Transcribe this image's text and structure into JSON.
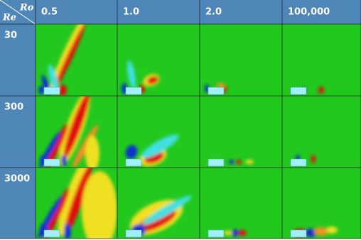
{
  "header": {
    "corner_top": "Ro",
    "corner_bottom": "Re",
    "columns": [
      "0.5",
      "1.0",
      "2.0",
      "100,000"
    ]
  },
  "rows": [
    {
      "label": "30"
    },
    {
      "label": "300"
    },
    {
      "label": "3000"
    }
  ]
}
